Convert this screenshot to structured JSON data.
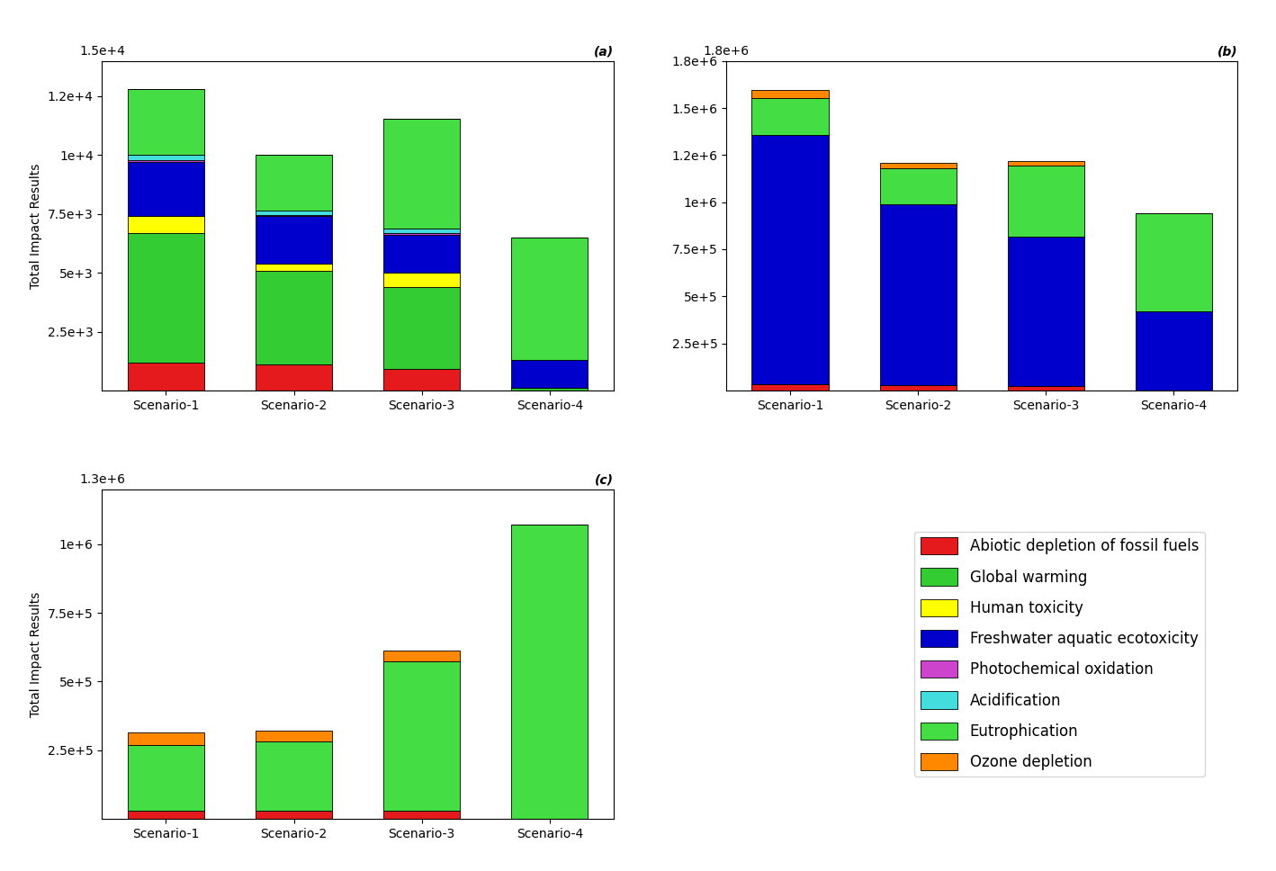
{
  "chart_data": [
    {
      "type": "bar",
      "stacked": true,
      "categories": [
        "Scenario-1",
        "Scenario-2",
        "Scenario-3",
        "Scenario-4"
      ],
      "y_label": "Total Impact Results",
      "annotations": [
        "(a)",
        "1.5e+4"
      ],
      "ylim": [
        0,
        14000
      ],
      "yticks": [
        {
          "value": 2500,
          "label": "2.5e+3"
        },
        {
          "value": 5000,
          "label": "5e+3"
        },
        {
          "value": 7500,
          "label": "7.5e+3"
        },
        {
          "value": 10000,
          "label": "1e+4"
        },
        {
          "value": 12500,
          "label": "1.2e+4"
        }
      ],
      "series": [
        {
          "name": "Abiotic depletion of fossil fuels",
          "color": "#e41a1c",
          "values": [
            1200,
            1100,
            900,
            0
          ]
        },
        {
          "name": "Global warming",
          "color": "#33cc33",
          "values": [
            5500,
            4000,
            3500,
            100
          ]
        },
        {
          "name": "Human toxicity",
          "color": "#ffff00",
          "values": [
            700,
            300,
            600,
            0
          ]
        },
        {
          "name": "Freshwater aquatic ecotoxicity",
          "color": "#0000cc",
          "values": [
            2300,
            2000,
            1600,
            1200
          ]
        },
        {
          "name": "Photochemical oxidation",
          "color": "#cc44cc",
          "values": [
            80,
            50,
            80,
            0
          ]
        },
        {
          "name": "Acidification",
          "color": "#44dddd",
          "values": [
            220,
            200,
            180,
            0
          ]
        },
        {
          "name": "Eutrophication",
          "color": "#44dd44",
          "values": [
            2800,
            2350,
            4700,
            5200
          ]
        },
        {
          "name": "Ozone depletion",
          "color": "#ff8800",
          "values": [
            0,
            0,
            0,
            0
          ]
        }
      ]
    },
    {
      "type": "bar",
      "stacked": true,
      "categories": [
        "Scenario-1",
        "Scenario-2",
        "Scenario-3",
        "Scenario-4"
      ],
      "annotations": [
        "(b)",
        "1.8e+6"
      ],
      "ylim": [
        0,
        1750000
      ],
      "yticks": [
        {
          "value": 250000,
          "label": "2.5e+5"
        },
        {
          "value": 500000,
          "label": "5e+5"
        },
        {
          "value": 750000,
          "label": "7.5e+5"
        },
        {
          "value": 1000000,
          "label": "1e+6"
        },
        {
          "value": 1250000,
          "label": "1.2e+6"
        },
        {
          "value": 1500000,
          "label": "1.5e+6"
        },
        {
          "value": 1750000,
          "label": "1.8e+6"
        }
      ],
      "series": [
        {
          "name": "Abiotic depletion of fossil fuels",
          "color": "#e41a1c",
          "values": [
            35000,
            28000,
            25000,
            0
          ]
        },
        {
          "name": "Global warming",
          "color": "#33cc33",
          "values": [
            0,
            0,
            0,
            0
          ]
        },
        {
          "name": "Human toxicity",
          "color": "#ffff00",
          "values": [
            0,
            0,
            0,
            0
          ]
        },
        {
          "name": "Freshwater aquatic ecotoxicity",
          "color": "#0000cc",
          "values": [
            1320000,
            960000,
            790000,
            420000
          ]
        },
        {
          "name": "Photochemical oxidation",
          "color": "#cc44cc",
          "values": [
            0,
            0,
            0,
            0
          ]
        },
        {
          "name": "Acidification",
          "color": "#44dddd",
          "values": [
            0,
            0,
            0,
            0
          ]
        },
        {
          "name": "Eutrophication",
          "color": "#44dd44",
          "values": [
            200000,
            190000,
            380000,
            520000
          ]
        },
        {
          "name": "Ozone depletion",
          "color": "#ff8800",
          "values": [
            40000,
            30000,
            25000,
            0
          ]
        }
      ]
    },
    {
      "type": "bar",
      "stacked": true,
      "legend": "lower right",
      "categories": [
        "Scenario-1",
        "Scenario-2",
        "Scenario-3",
        "Scenario-4"
      ],
      "y_label": "Total Impact Results",
      "annotations": [
        "(c)",
        "1.3e+6"
      ],
      "ylim": [
        0,
        1200000
      ],
      "yticks": [
        {
          "value": 250000,
          "label": "2.5e+5"
        },
        {
          "value": 500000,
          "label": "5e+5"
        },
        {
          "value": 750000,
          "label": "7.5e+5"
        },
        {
          "value": 1000000,
          "label": "1e+6"
        }
      ],
      "series": [
        {
          "name": "Abiotic depletion of fossil fuels",
          "color": "#e41a1c",
          "values": [
            30000,
            30000,
            28000,
            0
          ]
        },
        {
          "name": "Global warming",
          "color": "#33cc33",
          "values": [
            0,
            0,
            0,
            0
          ]
        },
        {
          "name": "Human toxicity",
          "color": "#ffff00",
          "values": [
            0,
            0,
            0,
            0
          ]
        },
        {
          "name": "Freshwater aquatic ecotoxicity",
          "color": "#0000cc",
          "values": [
            0,
            0,
            0,
            0
          ]
        },
        {
          "name": "Photochemical oxidation",
          "color": "#cc44cc",
          "values": [
            0,
            0,
            0,
            0
          ]
        },
        {
          "name": "Acidification",
          "color": "#44dddd",
          "values": [
            0,
            0,
            0,
            0
          ]
        },
        {
          "name": "Eutrophication",
          "color": "#44dd44",
          "values": [
            240000,
            250000,
            545000,
            1070000
          ]
        },
        {
          "name": "Ozone depletion",
          "color": "#ff8800",
          "values": [
            45000,
            42000,
            40000,
            0
          ]
        }
      ]
    }
  ]
}
